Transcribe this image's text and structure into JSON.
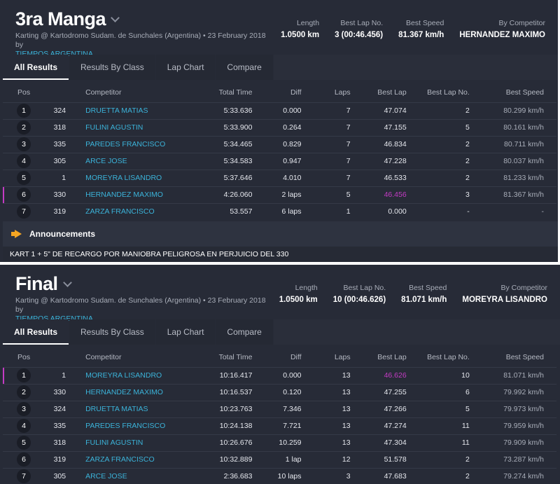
{
  "sessions": [
    {
      "title": "3ra Manga",
      "subtitle": "Karting @ Kartodromo Sudam. de Sunchales (Argentina) • 23 February 2018 by",
      "organizer": "TIEMPOS ARGENTINA",
      "stats": {
        "length_label": "Length",
        "length": "1.0500 km",
        "best_lap_no_label": "Best Lap No.",
        "best_lap_no": "3 (00:46.456)",
        "best_speed_label": "Best Speed",
        "best_speed": "81.367 km/h",
        "by_competitor_label": "By Competitor",
        "by_competitor": "HERNANDEZ MAXIMO"
      },
      "tabs": [
        "All Results",
        "Results By Class",
        "Lap Chart",
        "Compare"
      ],
      "columns": [
        "Pos",
        "Competitor",
        "Total Time",
        "Diff",
        "Laps",
        "Best Lap",
        "Best Lap No.",
        "Best Speed"
      ],
      "rows": [
        {
          "pos": "1",
          "no": "324",
          "name": "DRUETTA MATIAS",
          "total": "5:33.636",
          "diff": "0.000",
          "laps": "7",
          "best": "47.074",
          "bestno": "2",
          "speed": "80.299 km/h"
        },
        {
          "pos": "2",
          "no": "318",
          "name": "FULINI AGUSTIN",
          "total": "5:33.900",
          "diff": "0.264",
          "laps": "7",
          "best": "47.155",
          "bestno": "5",
          "speed": "80.161 km/h"
        },
        {
          "pos": "3",
          "no": "335",
          "name": "PAREDES FRANCISCO",
          "total": "5:34.465",
          "diff": "0.829",
          "laps": "7",
          "best": "46.834",
          "bestno": "2",
          "speed": "80.711 km/h"
        },
        {
          "pos": "4",
          "no": "305",
          "name": "ARCE JOSE",
          "total": "5:34.583",
          "diff": "0.947",
          "laps": "7",
          "best": "47.228",
          "bestno": "2",
          "speed": "80.037 km/h"
        },
        {
          "pos": "5",
          "no": "1",
          "name": "MOREYRA LISANDRO",
          "total": "5:37.646",
          "diff": "4.010",
          "laps": "7",
          "best": "46.533",
          "bestno": "2",
          "speed": "81.233 km/h"
        },
        {
          "pos": "6",
          "no": "330",
          "name": "HERNANDEZ MAXIMO",
          "total": "4:26.060",
          "diff": "2 laps",
          "laps": "5",
          "best": "46.456",
          "bestno": "3",
          "speed": "81.367 km/h",
          "fastest": true
        },
        {
          "pos": "7",
          "no": "319",
          "name": "ZARZA FRANCISCO",
          "total": "53.557",
          "diff": "6 laps",
          "laps": "1",
          "best": "0.000",
          "bestno": "-",
          "speed": "-"
        }
      ],
      "announcements": {
        "title": "Announcements",
        "text": "KART 1 + 5\" DE RECARGO POR MANIOBRA PELIGROSA EN PERJUICIO DEL 330"
      }
    },
    {
      "title": "Final",
      "subtitle": "Karting @ Kartodromo Sudam. de Sunchales (Argentina) • 23 February 2018 by",
      "organizer": "TIEMPOS ARGENTINA",
      "stats": {
        "length_label": "Length",
        "length": "1.0500 km",
        "best_lap_no_label": "Best Lap No.",
        "best_lap_no": "10 (00:46.626)",
        "best_speed_label": "Best Speed",
        "best_speed": "81.071 km/h",
        "by_competitor_label": "By Competitor",
        "by_competitor": "MOREYRA LISANDRO"
      },
      "tabs": [
        "All Results",
        "Results By Class",
        "Lap Chart",
        "Compare"
      ],
      "columns": [
        "Pos",
        "Competitor",
        "Total Time",
        "Diff",
        "Laps",
        "Best Lap",
        "Best Lap No.",
        "Best Speed"
      ],
      "rows": [
        {
          "pos": "1",
          "no": "1",
          "name": "MOREYRA LISANDRO",
          "total": "10:16.417",
          "diff": "0.000",
          "laps": "13",
          "best": "46.626",
          "bestno": "10",
          "speed": "81.071 km/h",
          "fastest": true
        },
        {
          "pos": "2",
          "no": "330",
          "name": "HERNANDEZ MAXIMO",
          "total": "10:16.537",
          "diff": "0.120",
          "laps": "13",
          "best": "47.255",
          "bestno": "6",
          "speed": "79.992 km/h"
        },
        {
          "pos": "3",
          "no": "324",
          "name": "DRUETTA MATIAS",
          "total": "10:23.763",
          "diff": "7.346",
          "laps": "13",
          "best": "47.266",
          "bestno": "5",
          "speed": "79.973 km/h"
        },
        {
          "pos": "4",
          "no": "335",
          "name": "PAREDES FRANCISCO",
          "total": "10:24.138",
          "diff": "7.721",
          "laps": "13",
          "best": "47.274",
          "bestno": "11",
          "speed": "79.959 km/h"
        },
        {
          "pos": "5",
          "no": "318",
          "name": "FULINI AGUSTIN",
          "total": "10:26.676",
          "diff": "10.259",
          "laps": "13",
          "best": "47.304",
          "bestno": "11",
          "speed": "79.909 km/h"
        },
        {
          "pos": "6",
          "no": "319",
          "name": "ZARZA FRANCISCO",
          "total": "10:32.889",
          "diff": "1 lap",
          "laps": "12",
          "best": "51.578",
          "bestno": "2",
          "speed": "73.287 km/h"
        },
        {
          "pos": "7",
          "no": "305",
          "name": "ARCE JOSE",
          "total": "2:36.683",
          "diff": "10 laps",
          "laps": "3",
          "best": "47.683",
          "bestno": "2",
          "speed": "79.274 km/h"
        }
      ]
    }
  ]
}
